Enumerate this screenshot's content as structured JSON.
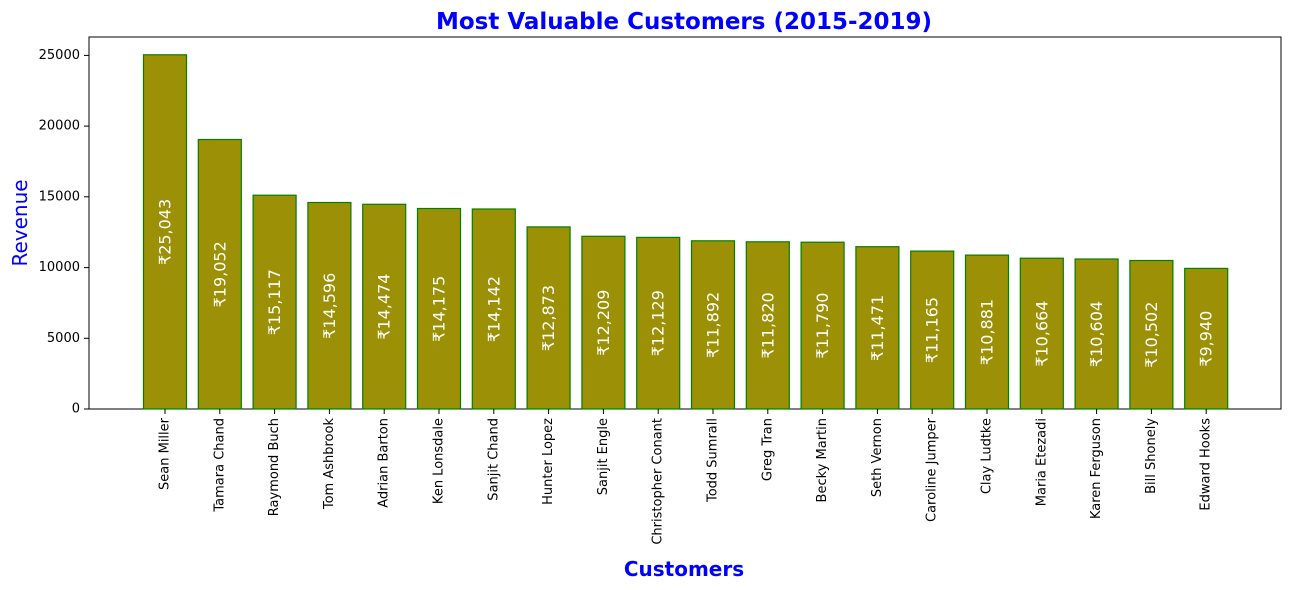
{
  "chart_data": {
    "type": "bar",
    "title": "Most Valuable Customers (2015-2019)",
    "xlabel": "Customers",
    "ylabel": "Revenue",
    "ylim": [
      0,
      26300
    ],
    "yticks": [
      0,
      5000,
      10000,
      15000,
      20000,
      25000
    ],
    "categories": [
      "Sean Miller",
      "Tamara Chand",
      "Raymond Buch",
      "Tom Ashbrook",
      "Adrian Barton",
      "Ken Lonsdale",
      "Sanjit Chand",
      "Hunter Lopez",
      "Sanjit Engle",
      "Christopher Conant",
      "Todd Sumrall",
      "Greg Tran",
      "Becky Martin",
      "Seth Vernon",
      "Caroline Jumper",
      "Clay Ludtke",
      "Maria Etezadi",
      "Karen Ferguson",
      "Bill Shonely",
      "Edward Hooks"
    ],
    "values": [
      25043,
      19052,
      15117,
      14596,
      14474,
      14175,
      14142,
      12873,
      12209,
      12129,
      11892,
      11820,
      11790,
      11471,
      11165,
      10881,
      10664,
      10604,
      10502,
      9940
    ],
    "data_labels": [
      "₹25,043",
      "₹19,052",
      "₹15,117",
      "₹14,596",
      "₹14,474",
      "₹14,175",
      "₹14,142",
      "₹12,873",
      "₹12,209",
      "₹12,129",
      "₹11,892",
      "₹11,820",
      "₹11,790",
      "₹11,471",
      "₹11,165",
      "₹10,881",
      "₹10,664",
      "₹10,604",
      "₹10,502",
      "₹9,940"
    ],
    "grid": false,
    "legend": "none",
    "colors": {
      "bar_fill": "#9c9006",
      "bar_edge": "#008000",
      "title": "#0000ff",
      "axis_labels": "#0000ff",
      "bar_label": "#ffffff"
    }
  }
}
